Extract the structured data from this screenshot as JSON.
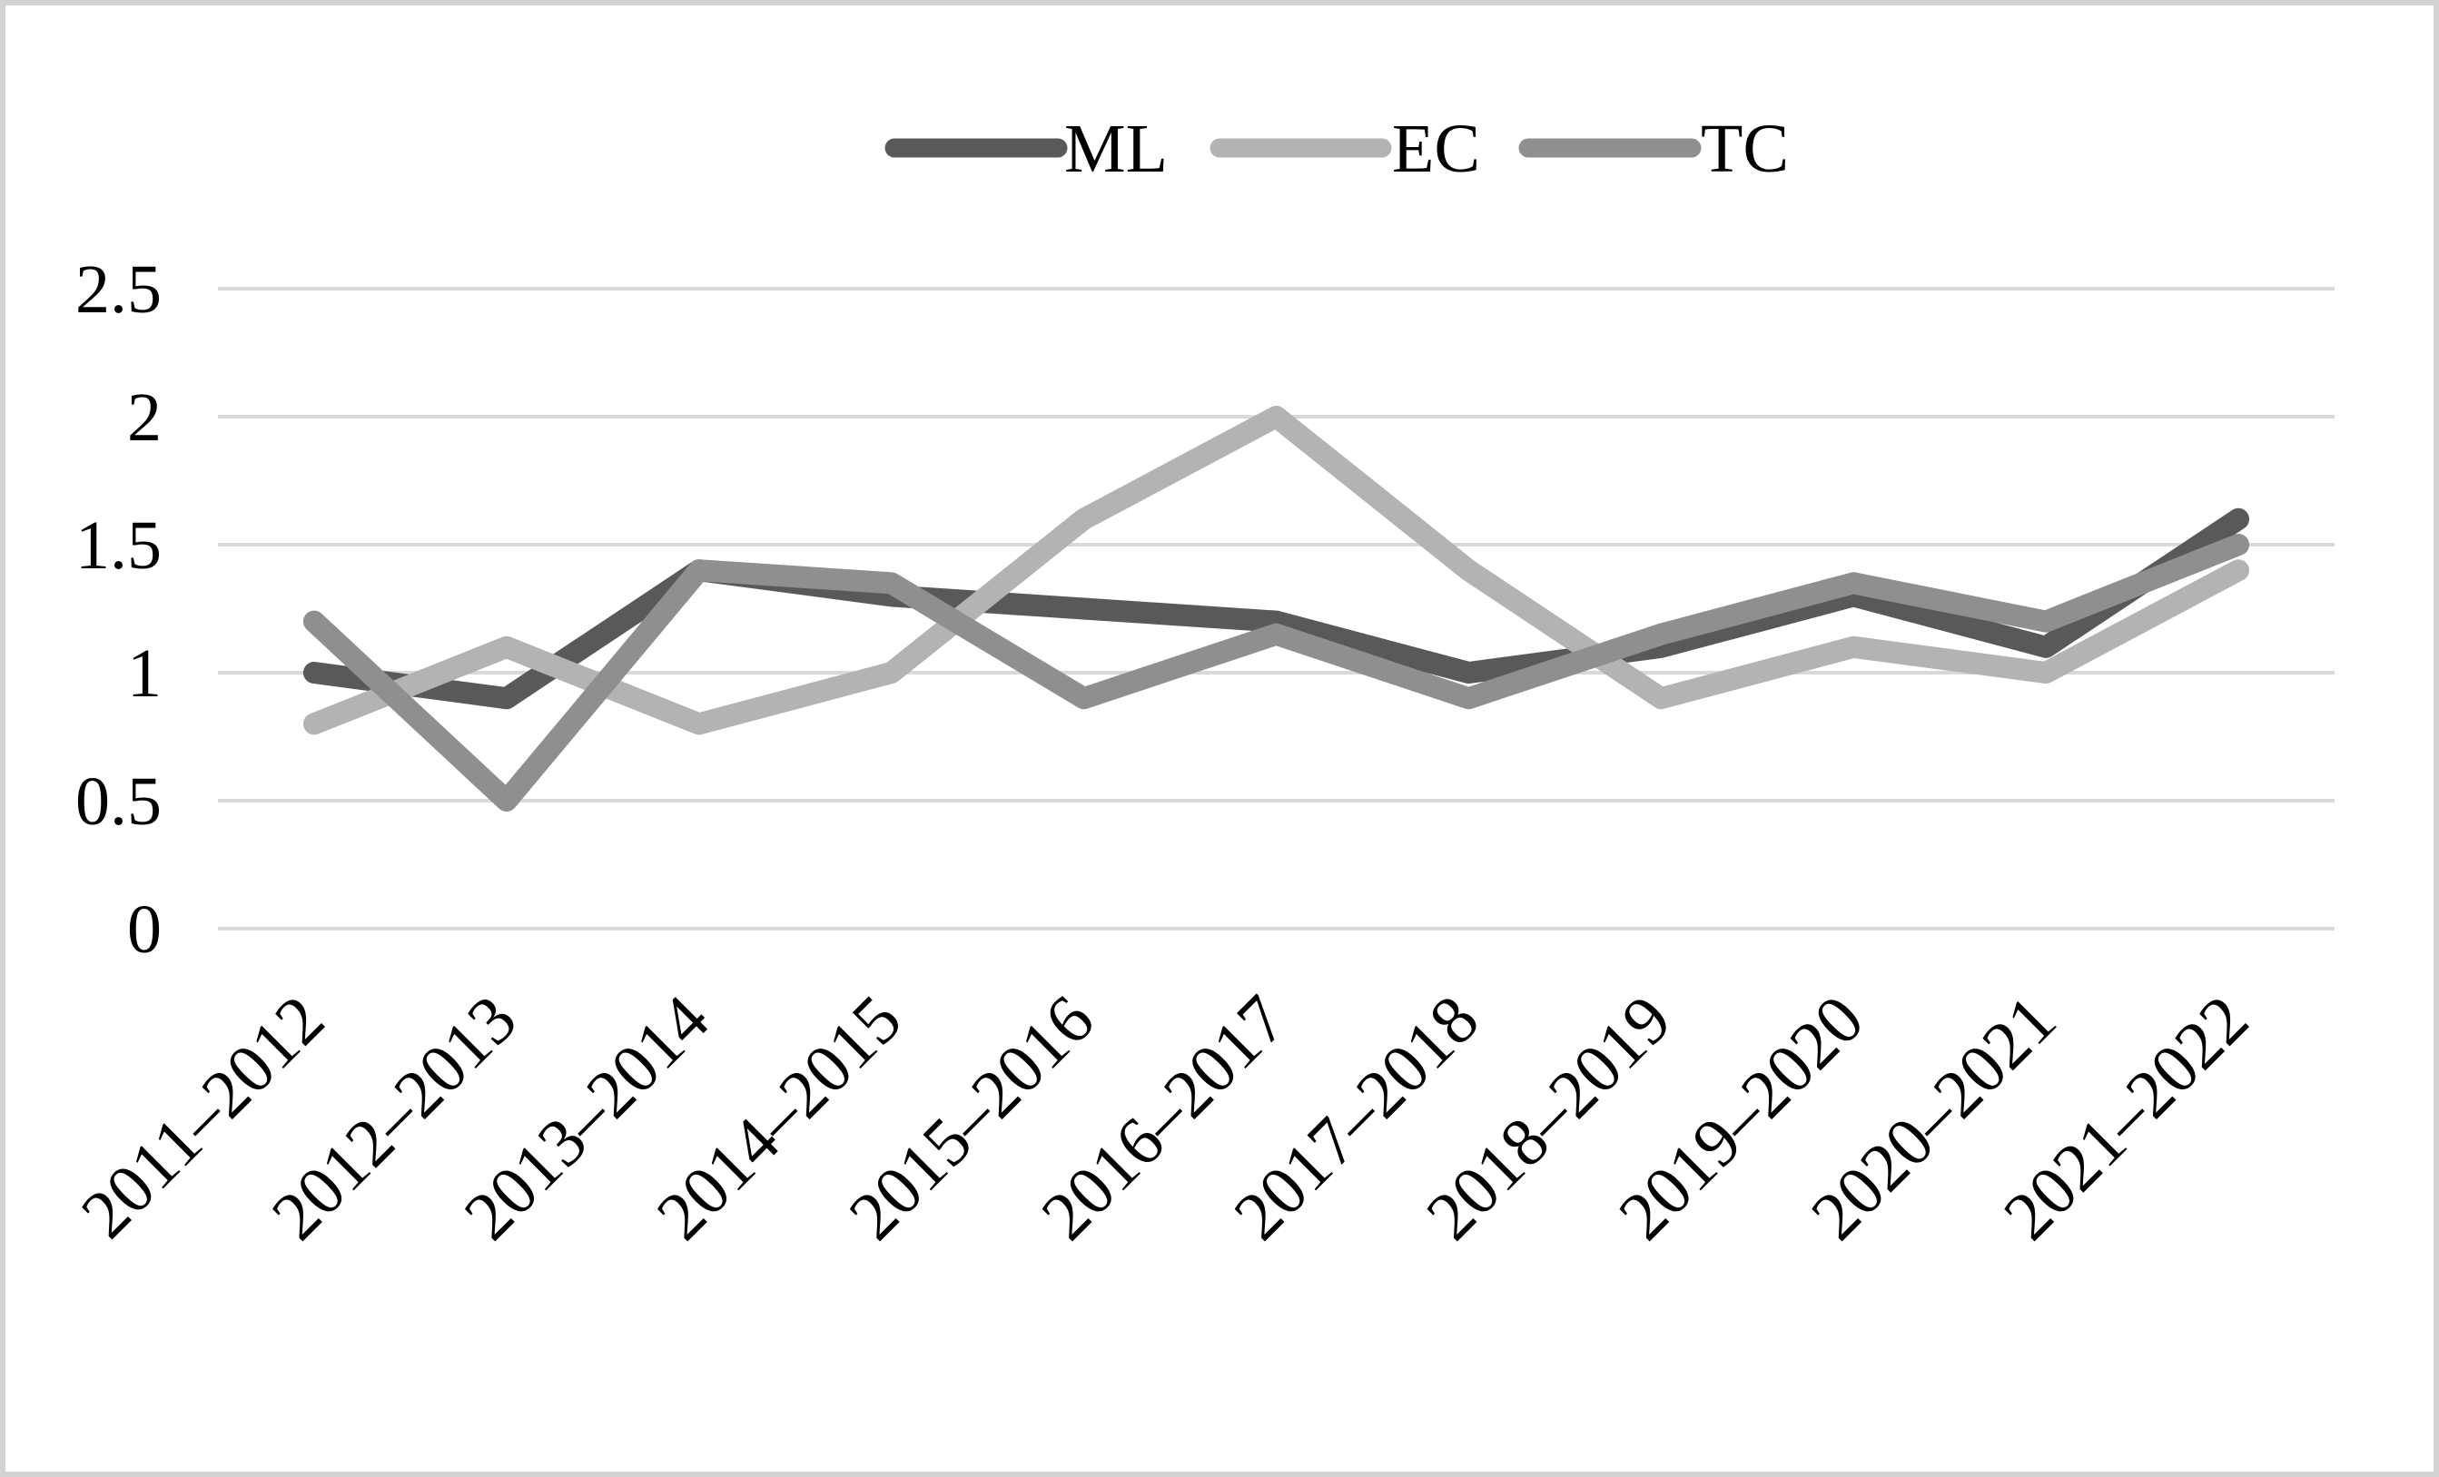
{
  "figure": {
    "background": "#ffffff",
    "border_color": "#d3d3d3"
  },
  "legend": {
    "position": "top-center",
    "items": [
      {
        "label": "ML",
        "color": "#595959"
      },
      {
        "label": "EC",
        "color": "#b3b3b3"
      },
      {
        "label": "TC",
        "color": "#8f8f8f"
      }
    ]
  },
  "y_axis": {
    "tick_labels": [
      "2.5",
      "2",
      "1.5",
      "1",
      "0.5",
      "0"
    ],
    "min": 0,
    "max": 2.5,
    "gridlines": true,
    "gridline_color": "#d9d9d9"
  },
  "chart_data": {
    "type": "line",
    "title": "",
    "xlabel": "",
    "ylabel": "",
    "ylim": [
      0,
      2.5
    ],
    "grid": true,
    "legend_position": "top-center",
    "categories": [
      "2011–2012",
      "2012–2013",
      "2013–2014",
      "2014–2015",
      "2015–2016",
      "2016–2017",
      "2017–2018",
      "2018–2019",
      "2019–2020",
      "2020–2021",
      "2021–2022"
    ],
    "series": [
      {
        "name": "ML",
        "color": "#595959",
        "values": [
          1.0,
          0.9,
          1.4,
          1.3,
          1.25,
          1.2,
          1.0,
          1.1,
          1.3,
          1.1,
          1.6
        ]
      },
      {
        "name": "EC",
        "color": "#b3b3b3",
        "values": [
          0.8,
          1.1,
          0.8,
          1.0,
          1.6,
          2.0,
          1.4,
          0.9,
          1.1,
          1.0,
          1.4
        ]
      },
      {
        "name": "TC",
        "color": "#8f8f8f",
        "values": [
          1.2,
          0.5,
          1.4,
          1.35,
          0.9,
          1.15,
          0.9,
          1.15,
          1.35,
          1.2,
          1.5
        ]
      }
    ]
  }
}
